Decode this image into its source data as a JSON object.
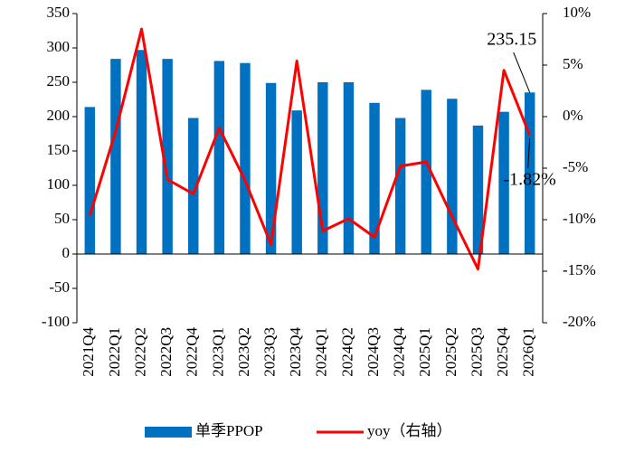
{
  "chart_data": {
    "type": "bar_line",
    "categories": [
      "2021Q4",
      "2022Q1",
      "2022Q2",
      "2022Q3",
      "2022Q4",
      "2023Q1",
      "2023Q2",
      "2023Q3",
      "2023Q4",
      "2024Q1",
      "2024Q2",
      "2024Q3",
      "2024Q4",
      "2025Q1",
      "2025Q2",
      "2025Q3",
      "2025Q4",
      "2026Q1"
    ],
    "series": [
      {
        "name": "单季PPOP",
        "type": "bar",
        "color": "#0070c0",
        "values": [
          214,
          284,
          297,
          284,
          198,
          281,
          278,
          249,
          209,
          250,
          250,
          220,
          198,
          239,
          226,
          187,
          207,
          235.15
        ],
        "value_labels": [
          null,
          null,
          null,
          null,
          null,
          null,
          null,
          null,
          null,
          null,
          null,
          null,
          null,
          null,
          null,
          null,
          null,
          "235.15"
        ]
      },
      {
        "name": "yoy（右轴）",
        "type": "line",
        "color": "#ff0000",
        "axis": "y2",
        "values": [
          -9.6,
          -1.4,
          8.5,
          -6.1,
          -7.5,
          -1.1,
          -6.2,
          -12.4,
          5.4,
          -11.1,
          -9.9,
          -11.7,
          -4.8,
          -4.4,
          -9.7,
          -14.8,
          4.5,
          -1.82
        ],
        "value_labels": [
          null,
          null,
          null,
          null,
          null,
          null,
          null,
          null,
          null,
          null,
          null,
          null,
          null,
          null,
          null,
          null,
          null,
          "-1.82%"
        ]
      }
    ],
    "ylim": [
      -100,
      350
    ],
    "yticks": [
      -100,
      -50,
      0,
      50,
      100,
      150,
      200,
      250,
      300,
      350
    ],
    "y2lim": [
      -20,
      10
    ],
    "y2ticks": [
      {
        "value": -20,
        "label": "-20%"
      },
      {
        "value": -15,
        "label": "-15%"
      },
      {
        "value": -10,
        "label": "-10%"
      },
      {
        "value": -5,
        "label": "-5%"
      },
      {
        "value": 0,
        "label": "0%"
      },
      {
        "value": 5,
        "label": "5%"
      },
      {
        "value": 10,
        "label": "10%"
      }
    ],
    "legend": "bottom"
  }
}
